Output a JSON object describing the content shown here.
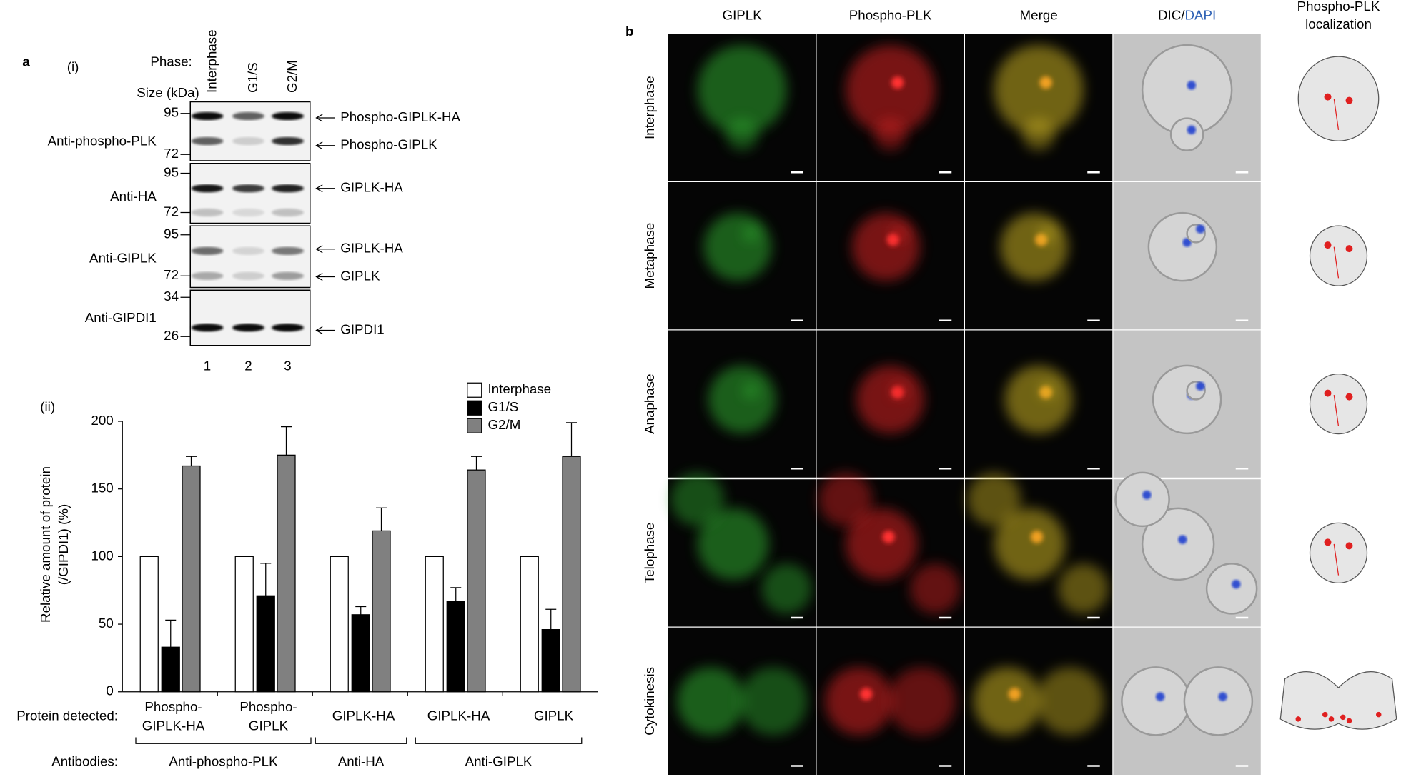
{
  "panel_a": {
    "label": "a",
    "sub_i": "(i)",
    "sub_ii": "(ii)",
    "phase_label": "Phase:",
    "phases": [
      "Interphase",
      "G1/S",
      "G2/M"
    ],
    "size_label": "Size (kDa)",
    "blots": [
      {
        "antibody": "Anti-phospho-PLK",
        "sizes": [
          "95",
          "72"
        ],
        "bands": [
          "Phospho-GIPLK-HA",
          "Phospho-GIPLK"
        ]
      },
      {
        "antibody": "Anti-HA",
        "sizes": [
          "95",
          "72"
        ],
        "bands": [
          "GIPLK-HA"
        ]
      },
      {
        "antibody": "Anti-GIPLK",
        "sizes": [
          "95",
          "72"
        ],
        "bands": [
          "GIPLK-HA",
          "GIPLK"
        ]
      },
      {
        "antibody": "Anti-GIPDI1",
        "sizes": [
          "34",
          "26"
        ],
        "bands": [
          "GIPDI1"
        ]
      }
    ],
    "lanes": [
      "1",
      "2",
      "3"
    ]
  },
  "chart_data": {
    "type": "bar",
    "y_label": [
      "Relative amount of protein",
      "(/GIPDI1) (%)"
    ],
    "categories": [
      [
        "Phospho-",
        "GIPLK-HA"
      ],
      [
        "Phospho-",
        "GIPLK"
      ],
      [
        "GIPLK-HA"
      ],
      [
        "GIPLK-HA"
      ],
      [
        "GIPLK"
      ]
    ],
    "series": [
      {
        "name": "Interphase",
        "color": "#ffffff",
        "values": [
          100,
          100,
          100,
          100,
          100
        ]
      },
      {
        "name": "G1/S",
        "color": "#000000",
        "values": [
          33,
          71,
          57,
          67,
          46
        ],
        "errors": [
          20,
          24,
          6,
          10,
          15
        ]
      },
      {
        "name": "G2/M",
        "color": "#808080",
        "values": [
          167,
          175,
          119,
          164,
          174
        ],
        "errors": [
          7,
          21,
          17,
          10,
          25
        ]
      }
    ],
    "ylim": [
      0,
      200
    ],
    "yticks": [
      0,
      50,
      100,
      150,
      200
    ],
    "row_labels": [
      "Protein detected:",
      "Antibodies:"
    ],
    "antibody_groups": [
      "Anti-phospho-PLK",
      "Anti-HA",
      "Anti-GIPLK"
    ]
  },
  "panel_b": {
    "label": "b",
    "columns": [
      "GIPLK",
      "Phospho-PLK",
      "Merge"
    ],
    "dic_label": "DIC/",
    "dapi_label": "DAPI",
    "localization_title": [
      "Phospho-PLK",
      "localization"
    ],
    "rows": [
      "Interphase",
      "Metaphase",
      "Anaphase",
      "Telophase",
      "Cytokinesis"
    ]
  }
}
